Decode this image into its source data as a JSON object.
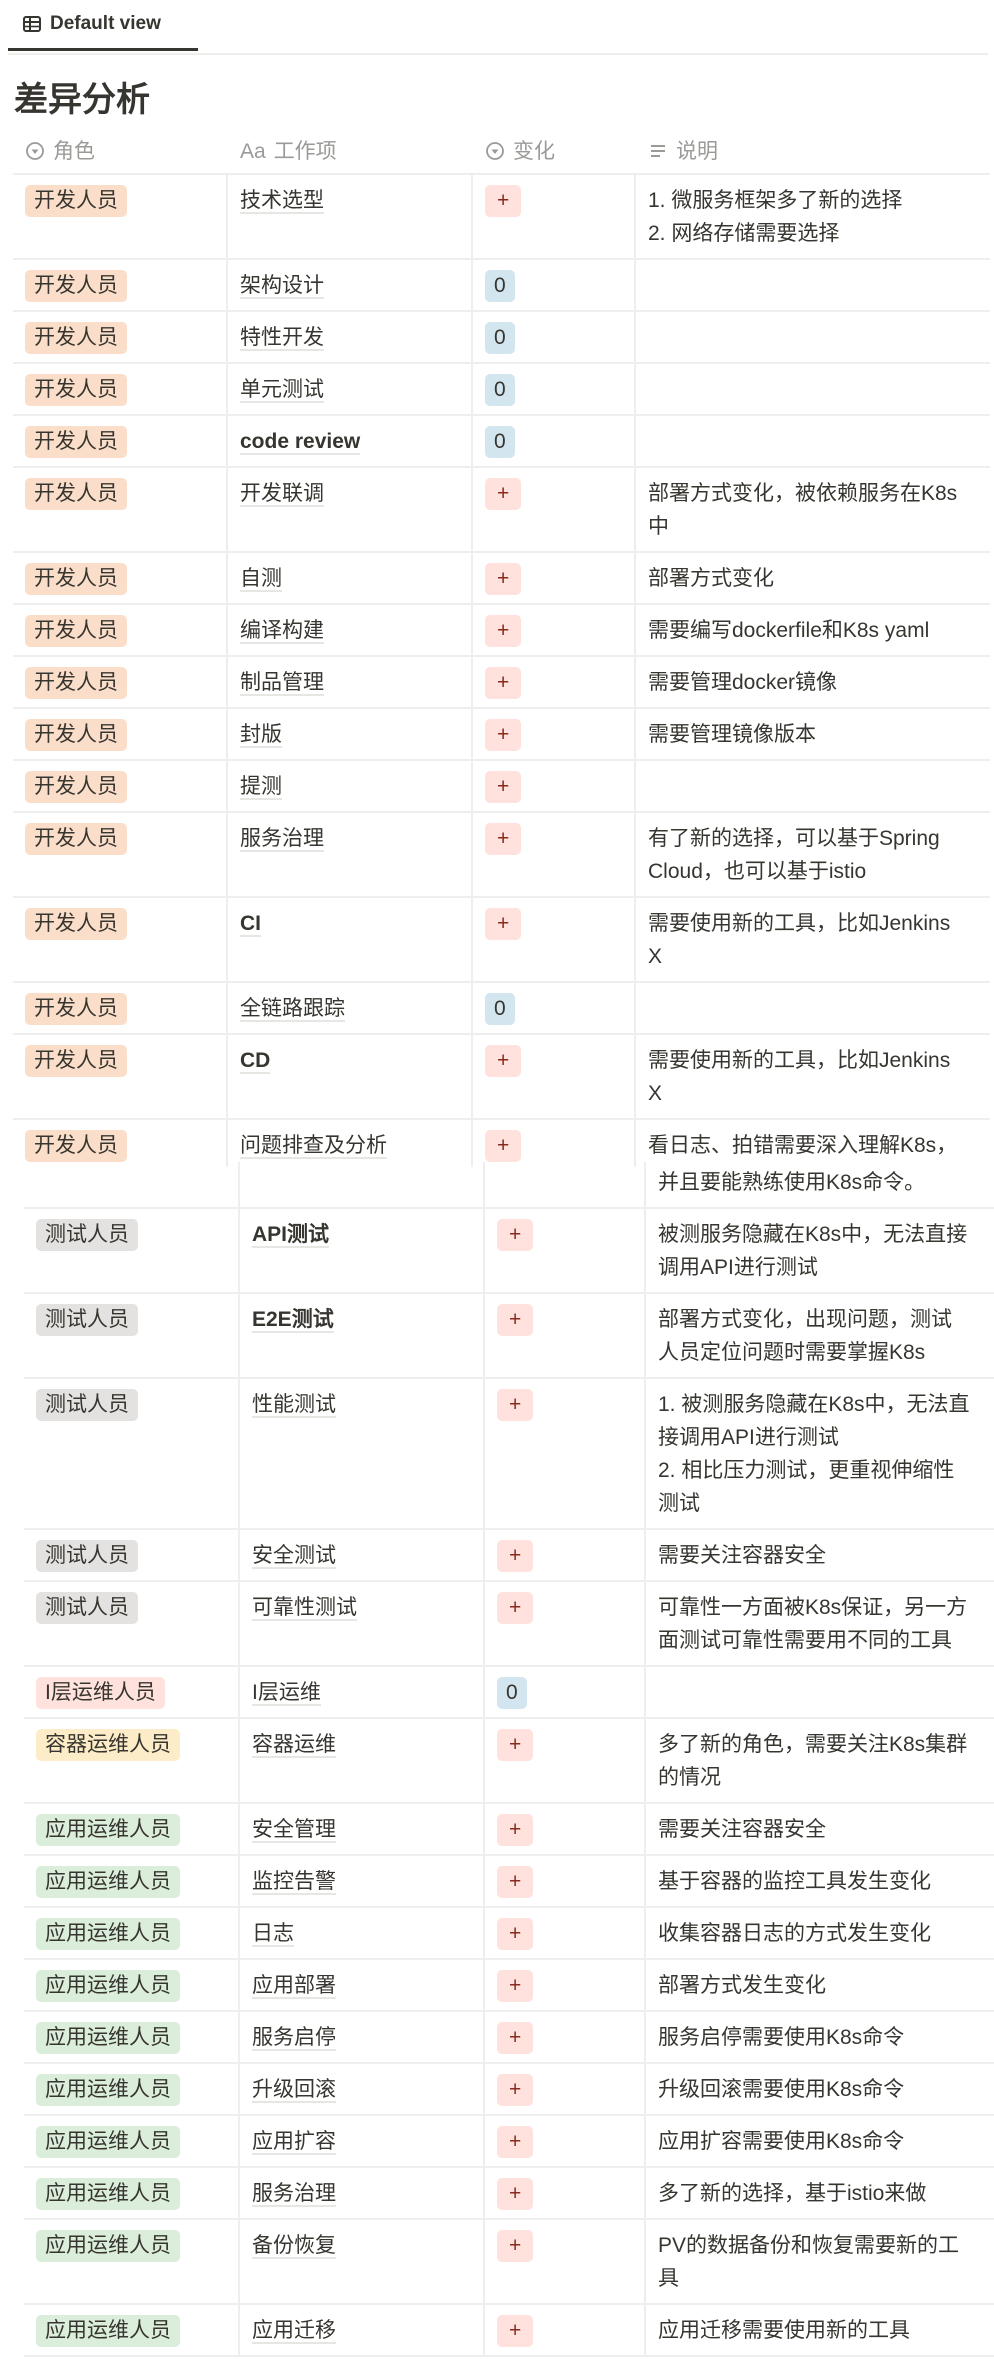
{
  "tab": {
    "label": "Default view",
    "icon": "table-icon"
  },
  "title": "差异分析",
  "columns": [
    {
      "label": "角色",
      "icon": "select-icon"
    },
    {
      "label": "工作项",
      "icon": "text-aa-icon",
      "icon_text": "Aa"
    },
    {
      "label": "变化",
      "icon": "select-icon"
    },
    {
      "label": "说明",
      "icon": "lines-icon"
    }
  ],
  "role_colors": {
    "开发人员": "#fadec9",
    "测试人员": "#e3e2e0",
    "I层运维人员": "#ffe2dd",
    "容器运维人员": "#fdecc8",
    "应用运维人员": "#dbeddb"
  },
  "change_colors": {
    "+": "#ffe2dd",
    "0": "#d3e5ef"
  },
  "rows": [
    {
      "role": "开发人员",
      "item": "技术选型",
      "change": "+",
      "desc": "1. 微服务框架多了新的选择\n2. 网络存储需要选择"
    },
    {
      "role": "开发人员",
      "item": "架构设计",
      "change": "0",
      "desc": ""
    },
    {
      "role": "开发人员",
      "item": "特性开发",
      "change": "0",
      "desc": ""
    },
    {
      "role": "开发人员",
      "item": "单元测试",
      "change": "0",
      "desc": ""
    },
    {
      "role": "开发人员",
      "item": "code review",
      "change": "0",
      "desc": "",
      "bold": true
    },
    {
      "role": "开发人员",
      "item": "开发联调",
      "change": "+",
      "desc": "部署方式变化，被依赖服务在K8s\n中"
    },
    {
      "role": "开发人员",
      "item": "自测",
      "change": "+",
      "desc": "部署方式变化"
    },
    {
      "role": "开发人员",
      "item": "编译构建",
      "change": "+",
      "desc": "需要编写dockerfile和K8s yaml"
    },
    {
      "role": "开发人员",
      "item": "制品管理",
      "change": "+",
      "desc": "需要管理docker镜像"
    },
    {
      "role": "开发人员",
      "item": "封版",
      "change": "+",
      "desc": "需要管理镜像版本"
    },
    {
      "role": "开发人员",
      "item": "提测",
      "change": "+",
      "desc": ""
    },
    {
      "role": "开发人员",
      "item": "服务治理",
      "change": "+",
      "desc": "有了新的选择，可以基于Spring\nCloud，也可以基于istio"
    },
    {
      "role": "开发人员",
      "item": "CI",
      "change": "+",
      "desc": "需要使用新的工具，比如Jenkins\nX",
      "bold": true
    },
    {
      "role": "开发人员",
      "item": "全链路跟踪",
      "change": "0",
      "desc": ""
    },
    {
      "role": "开发人员",
      "item": "CD",
      "change": "+",
      "desc": "需要使用新的工具，比如Jenkins\nX",
      "bold": true
    },
    {
      "role": "开发人员",
      "item": "问题排查及分析",
      "change": "+",
      "desc": "看日志、拍错需要深入理解K8s，"
    }
  ],
  "continuation": "并且要能熟练使用K8s命令。",
  "rows2": [
    {
      "role": "测试人员",
      "item": "API测试",
      "change": "+",
      "desc": "被测服务隐藏在K8s中，无法直接\n调用API进行测试",
      "bold": true
    },
    {
      "role": "测试人员",
      "item": "E2E测试",
      "change": "+",
      "desc": "部署方式变化，出现问题，测试\n人员定位问题时需要掌握K8s",
      "bold": true
    },
    {
      "role": "测试人员",
      "item": "性能测试",
      "change": "+",
      "desc": "1. 被测服务隐藏在K8s中，无法直\n接调用API进行测试\n2. 相比压力测试，更重视伸缩性\n测试"
    },
    {
      "role": "测试人员",
      "item": "安全测试",
      "change": "+",
      "desc": "需要关注容器安全"
    },
    {
      "role": "测试人员",
      "item": "可靠性测试",
      "change": "+",
      "desc": "可靠性一方面被K8s保证，另一方\n面测试可靠性需要用不同的工具"
    },
    {
      "role": "I层运维人员",
      "item": "I层运维",
      "change": "0",
      "desc": ""
    },
    {
      "role": "容器运维人员",
      "item": "容器运维",
      "change": "+",
      "desc": "多了新的角色，需要关注K8s集群\n的情况"
    },
    {
      "role": "应用运维人员",
      "item": "安全管理",
      "change": "+",
      "desc": "需要关注容器安全"
    },
    {
      "role": "应用运维人员",
      "item": "监控告警",
      "change": "+",
      "desc": "基于容器的监控工具发生变化"
    },
    {
      "role": "应用运维人员",
      "item": "日志",
      "change": "+",
      "desc": "收集容器日志的方式发生变化"
    },
    {
      "role": "应用运维人员",
      "item": "应用部署",
      "change": "+",
      "desc": "部署方式发生变化"
    },
    {
      "role": "应用运维人员",
      "item": "服务启停",
      "change": "+",
      "desc": "服务启停需要使用K8s命令"
    },
    {
      "role": "应用运维人员",
      "item": "升级回滚",
      "change": "+",
      "desc": "升级回滚需要使用K8s命令"
    },
    {
      "role": "应用运维人员",
      "item": "应用扩容",
      "change": "+",
      "desc": "应用扩容需要使用K8s命令"
    },
    {
      "role": "应用运维人员",
      "item": "服务治理",
      "change": "+",
      "desc": "多了新的选择，基于istio来做"
    },
    {
      "role": "应用运维人员",
      "item": "备份恢复",
      "change": "+",
      "desc": "PV的数据备份和恢复需要新的工\n具"
    },
    {
      "role": "应用运维人员",
      "item": "应用迁移",
      "change": "+",
      "desc": "应用迁移需要使用新的工具"
    }
  ]
}
